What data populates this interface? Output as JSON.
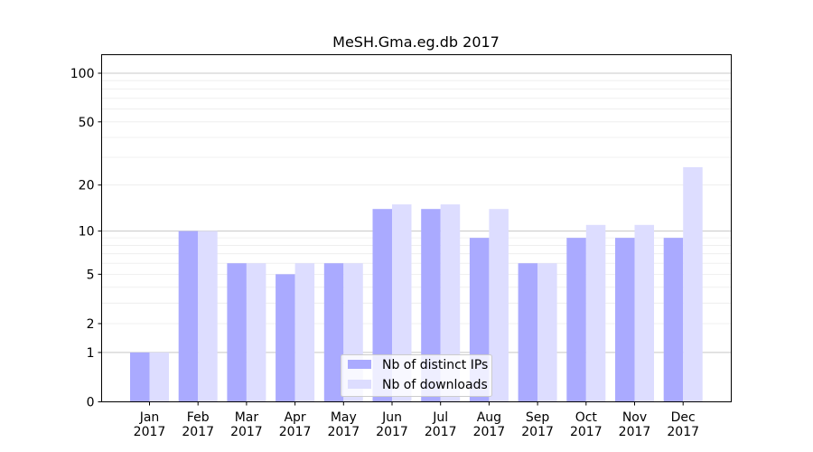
{
  "chart_data": {
    "type": "bar",
    "title": "MeSH.Gma.eg.db 2017",
    "xlabel": "",
    "ylabel": "",
    "yscale": "log1p",
    "ylim": [
      0,
      130
    ],
    "yticks": [
      0,
      1,
      2,
      5,
      10,
      20,
      50,
      100
    ],
    "grid": "y",
    "legend_position": "bottom-center",
    "categories": [
      [
        "Jan",
        "2017"
      ],
      [
        "Feb",
        "2017"
      ],
      [
        "Mar",
        "2017"
      ],
      [
        "Apr",
        "2017"
      ],
      [
        "May",
        "2017"
      ],
      [
        "Jun",
        "2017"
      ],
      [
        "Jul",
        "2017"
      ],
      [
        "Aug",
        "2017"
      ],
      [
        "Sep",
        "2017"
      ],
      [
        "Oct",
        "2017"
      ],
      [
        "Nov",
        "2017"
      ],
      [
        "Dec",
        "2017"
      ]
    ],
    "series": [
      {
        "name": "Nb of distinct IPs",
        "color": "#aaaaff",
        "values": [
          1,
          10,
          6,
          5,
          6,
          14,
          14,
          9,
          6,
          9,
          9,
          9
        ]
      },
      {
        "name": "Nb of downloads",
        "color": "#ddddff",
        "values": [
          1,
          10,
          6,
          6,
          6,
          15,
          15,
          14,
          6,
          11,
          11,
          26
        ]
      }
    ]
  }
}
